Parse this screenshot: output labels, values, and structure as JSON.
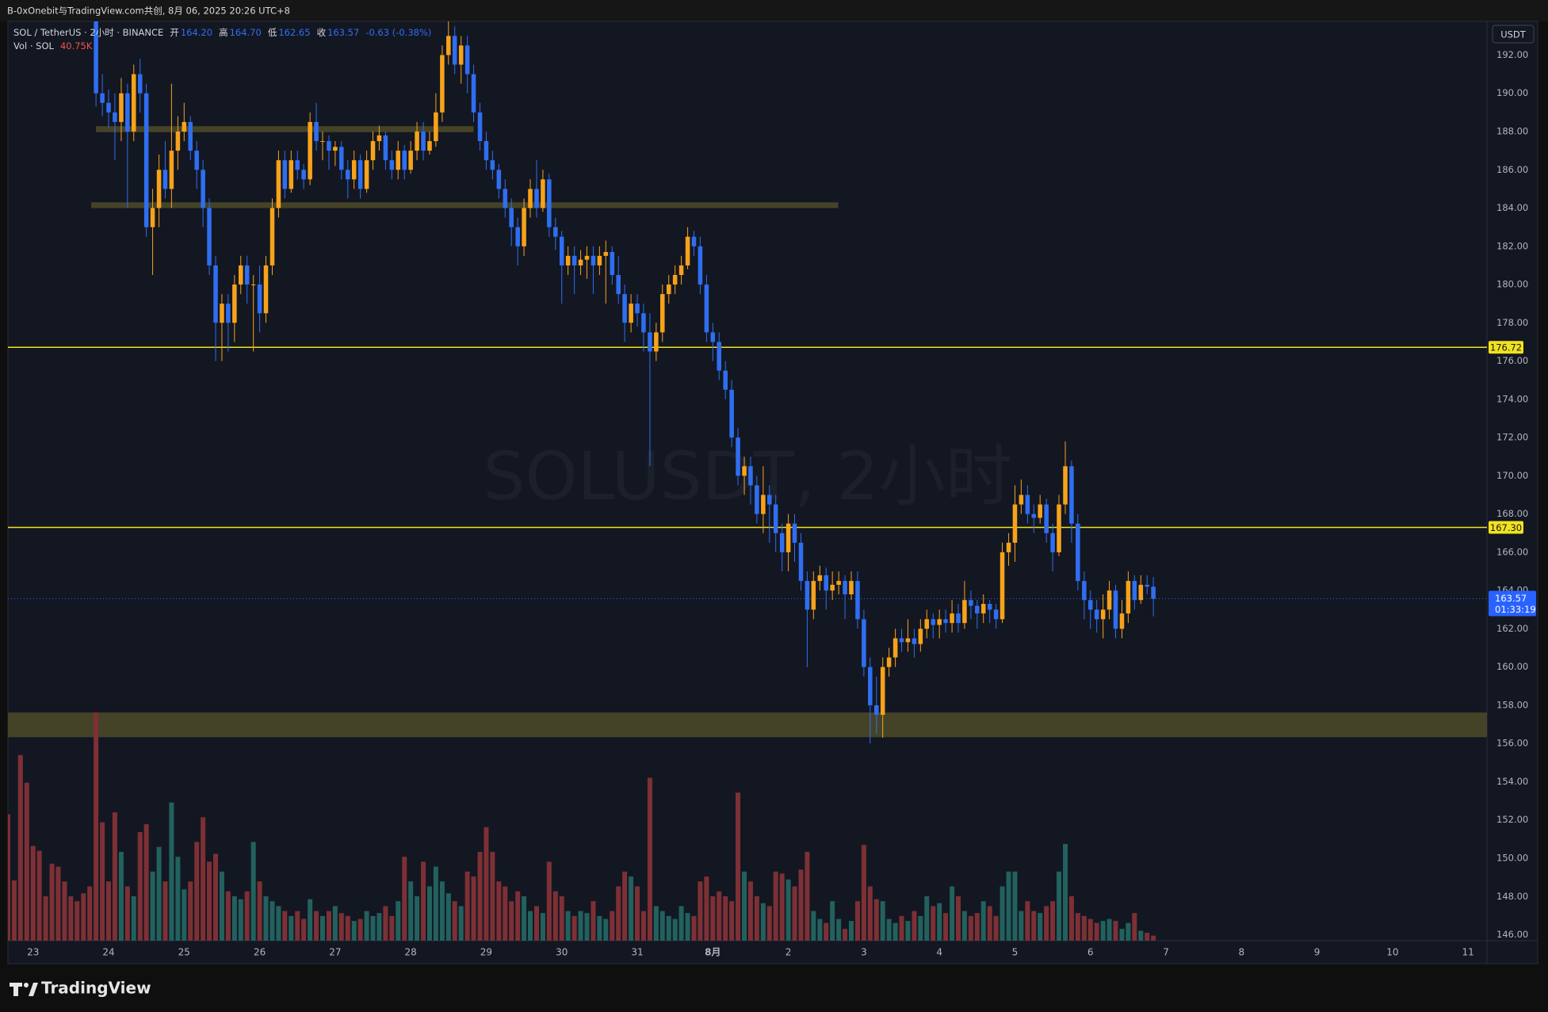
{
  "header": {
    "text": "B-0xOnebit与TradingView.com共创, 8月 06, 2025 20:26 UTC+8"
  },
  "chart_data": {
    "type": "candlestick",
    "title": "SOL / TetherUS · 2小时 · BINANCE",
    "watermark": "SOLUSDT, 2小时",
    "ohlc_legend": [
      {
        "key": "开",
        "value": "164.20"
      },
      {
        "key": "高",
        "value": "164.70"
      },
      {
        "key": "低",
        "value": "162.65"
      },
      {
        "key": "收",
        "value": "163.57"
      }
    ],
    "change": "-0.63 (-0.38%)",
    "volume_legend": {
      "name": "Vol · SOL",
      "value": "40.75K"
    },
    "currency": "USDT",
    "up_color": "#f7a21b",
    "down_color": "#2f6ef0",
    "x": [
      22.667,
      22.75,
      22.833,
      22.917,
      23,
      23.083,
      23.167,
      23.25,
      23.333,
      23.417,
      23.5,
      23.583,
      23.667,
      23.75,
      23.833,
      23.917,
      24,
      24.083,
      24.167,
      24.25,
      24.333,
      24.417,
      24.5,
      24.583,
      24.667,
      24.75,
      24.833,
      24.917,
      25,
      25.083,
      25.167,
      25.25,
      25.333,
      25.417,
      25.5,
      25.583,
      25.667,
      25.75,
      25.833,
      25.917,
      26,
      26.083,
      26.167,
      26.25,
      26.333,
      26.417,
      26.5,
      26.583,
      26.667,
      26.75,
      26.833,
      26.917,
      27,
      27.083,
      27.167,
      27.25,
      27.333,
      27.417,
      27.5,
      27.583,
      27.667,
      27.75,
      27.833,
      27.917,
      28,
      28.083,
      28.167,
      28.25,
      28.333,
      28.417,
      28.5,
      28.583,
      28.667,
      28.75,
      28.833,
      28.917,
      29,
      29.083,
      29.167,
      29.25,
      29.333,
      29.417,
      29.5,
      29.583,
      29.667,
      29.75,
      29.833,
      29.917,
      30,
      30.083,
      30.167,
      30.25,
      30.333,
      30.417,
      30.5,
      30.583,
      30.667,
      30.75,
      30.833,
      30.917,
      31,
      31.083,
      31.167,
      31.25,
      31.333,
      31.417,
      31.5,
      31.583,
      31.667,
      31.75,
      31.833,
      31.917,
      32,
      32.083,
      32.167,
      32.25,
      32.333,
      32.417,
      32.5,
      32.583,
      32.667,
      32.75,
      32.833,
      32.917,
      33,
      33.083,
      33.167,
      33.25,
      33.333,
      33.417,
      33.5,
      33.583,
      33.667,
      33.75,
      33.833,
      33.917,
      34,
      34.083,
      34.167,
      34.25,
      34.333,
      34.417,
      34.5,
      34.583,
      34.667,
      34.75,
      34.833,
      34.917,
      35,
      35.083,
      35.167,
      35.25,
      35.333,
      35.417,
      35.5,
      35.583,
      35.667,
      35.75,
      35.833,
      35.917,
      36,
      36.083,
      36.167,
      36.25,
      36.333,
      36.417,
      36.5,
      36.583,
      36.667,
      36.75,
      36.833,
      36.917,
      37,
      37.083,
      37.167,
      37.25,
      37.333,
      37.417,
      37.5,
      37.583,
      37.667,
      37.75,
      37.833
    ],
    "open": [
      null,
      null,
      null,
      null,
      null,
      null,
      null,
      null,
      null,
      null,
      null,
      null,
      null,
      null,
      195,
      190,
      189.5,
      189,
      188.5,
      190,
      188,
      191,
      190,
      183,
      184,
      186,
      185,
      187,
      188,
      188.5,
      187,
      186,
      184,
      181,
      178,
      179,
      178,
      180,
      181,
      180,
      180,
      178.5,
      181,
      184,
      186.5,
      185,
      186.5,
      186,
      185.5,
      188.5,
      187.5,
      187.5,
      187,
      187.2,
      186,
      185.5,
      186.5,
      185,
      186.5,
      187.5,
      187.8,
      186.5,
      186,
      187,
      186,
      187,
      188,
      187,
      187.5,
      189,
      192,
      193,
      191.5,
      192.5,
      191,
      189,
      187.5,
      186.5,
      186,
      185,
      184,
      183,
      182,
      184,
      185,
      184,
      185.5,
      183,
      182.5,
      181,
      181.5,
      181,
      181.3,
      181.5,
      181,
      181.5,
      181.7,
      180.5,
      179.5,
      178,
      179,
      178.5,
      177.5,
      176.5,
      177.5,
      179.5,
      180,
      180.5,
      181,
      182.5,
      182,
      180,
      177.5,
      177,
      175.5,
      174.5,
      172,
      170,
      170.5,
      169.5,
      168,
      169,
      168.5,
      167,
      166,
      167.5,
      166.5,
      164.5,
      163,
      164.5,
      164.8,
      164,
      164.3,
      164.5,
      163.8,
      164.5,
      162.5,
      160,
      158,
      157.5,
      160,
      160.5,
      161.5,
      161.3,
      161.5,
      161.2,
      162,
      162.5,
      162.2,
      162.5,
      162.3,
      162.8,
      162.3,
      163.5,
      163.2,
      162.8,
      163.3,
      163,
      162.5,
      166,
      166.5,
      168.5,
      169,
      168,
      167.8,
      168.5,
      167,
      166,
      168.5,
      170.5,
      167.5,
      164.5,
      163.5,
      163,
      162.5,
      163,
      164,
      162,
      162.8,
      164.5,
      163.5,
      164.3,
      164.2
    ],
    "high": [
      null,
      null,
      null,
      null,
      null,
      null,
      null,
      null,
      null,
      null,
      null,
      null,
      null,
      null,
      196,
      191,
      190.2,
      190,
      190.8,
      190.5,
      191.5,
      191.8,
      190.5,
      185,
      186.8,
      187.5,
      190.5,
      188.8,
      189.5,
      188.8,
      187.5,
      186.5,
      184.5,
      181.5,
      179.5,
      179.5,
      180.5,
      181.5,
      181.5,
      180.5,
      181,
      181.5,
      184.5,
      187,
      187,
      187,
      187,
      186.3,
      189,
      189.5,
      188,
      187.8,
      187.5,
      187.5,
      186.5,
      187,
      186.8,
      187,
      188,
      188.3,
      188,
      187,
      187.5,
      187.3,
      187.5,
      188.5,
      188.5,
      188,
      190,
      192.5,
      193.8,
      193.5,
      193,
      193,
      191.5,
      189.5,
      188,
      187,
      186.3,
      185.5,
      184.5,
      183.5,
      184.5,
      185.5,
      186.5,
      186,
      185.8,
      183.5,
      182.8,
      182,
      182,
      181.8,
      182,
      182,
      182,
      182.3,
      182,
      181.5,
      180,
      179.5,
      179.5,
      179,
      178.5,
      178,
      180,
      180.5,
      181,
      181.5,
      183,
      182.8,
      182.5,
      180.5,
      178,
      177.5,
      176,
      175,
      172.5,
      171,
      171,
      170,
      170.5,
      169.5,
      169,
      167.5,
      168,
      168,
      167,
      165,
      165,
      165.3,
      165.2,
      165,
      165,
      164.8,
      165,
      165,
      163,
      160.5,
      159.5,
      160.5,
      161,
      162,
      162,
      162.5,
      162,
      162.5,
      163,
      162.8,
      163,
      163,
      163.5,
      163.3,
      164.5,
      164,
      163.5,
      163.8,
      163.5,
      163.3,
      166.5,
      167,
      169.5,
      169.8,
      169.5,
      168.5,
      169,
      168.8,
      167.5,
      169,
      171.8,
      170.8,
      168,
      165,
      164,
      163.5,
      163.8,
      164.5,
      164.3,
      163.5,
      165,
      164.8,
      164.8,
      164.8,
      164.7
    ],
    "low": [
      null,
      null,
      null,
      null,
      null,
      null,
      null,
      null,
      null,
      null,
      null,
      null,
      null,
      null,
      189.3,
      188.8,
      188.2,
      186.5,
      187.5,
      184,
      187.5,
      189,
      182.5,
      180.5,
      183,
      184.5,
      184,
      186,
      187.5,
      186.5,
      185,
      183,
      180.5,
      176,
      176,
      176.5,
      177,
      179.5,
      179,
      176.5,
      177.5,
      178,
      180.5,
      183.5,
      184.5,
      184.8,
      185.5,
      185,
      185.2,
      187,
      186.5,
      186,
      186.2,
      185.5,
      184.5,
      185,
      184.5,
      184.8,
      186,
      187,
      186,
      185.5,
      185.5,
      185.5,
      185.8,
      186.5,
      186.5,
      186.8,
      187.2,
      188.5,
      191.5,
      191,
      190.5,
      190,
      188.5,
      187,
      186,
      185.5,
      184.5,
      183.5,
      182,
      181,
      181.5,
      183.5,
      183.5,
      183.8,
      182.5,
      181.8,
      179,
      180.5,
      179.5,
      180.5,
      180.3,
      179.5,
      180.5,
      179,
      180,
      179,
      177,
      177.5,
      177.8,
      176.5,
      170.5,
      176,
      177,
      179,
      179.5,
      180,
      180.8,
      181.5,
      179.5,
      177,
      176,
      175,
      174,
      171.5,
      169.5,
      169,
      168.5,
      167.5,
      167,
      166.5,
      166,
      165,
      165,
      165.5,
      164,
      160,
      162.5,
      164,
      163,
      163.5,
      163.8,
      162.5,
      163.5,
      162,
      159.5,
      156,
      156.5,
      156.3,
      159.5,
      160,
      160.8,
      160.8,
      160.5,
      160.8,
      161.5,
      161.5,
      161.5,
      161.8,
      161.8,
      161.8,
      162,
      162.5,
      162,
      162.3,
      162.3,
      162,
      162.3,
      165.3,
      165.5,
      168,
      167.5,
      167,
      167.5,
      166.5,
      165,
      165.8,
      168,
      166.5,
      164,
      162.5,
      162,
      161.8,
      161.5,
      162.5,
      161.5,
      161.5,
      162.3,
      163,
      163.3,
      163.8,
      162.65
    ],
    "close": [
      null,
      null,
      null,
      null,
      null,
      null,
      null,
      null,
      null,
      null,
      null,
      null,
      null,
      null,
      190,
      189.5,
      189,
      188.5,
      190,
      188,
      191,
      190,
      183,
      184,
      186,
      185,
      187,
      188,
      188.5,
      187,
      186,
      184,
      181,
      178,
      179,
      178,
      180,
      181,
      180,
      180,
      178.5,
      181,
      184,
      186.5,
      185,
      186.5,
      186,
      185.5,
      188.5,
      187.5,
      187.5,
      187,
      187.2,
      186,
      185.5,
      186.5,
      185,
      186.5,
      187.5,
      187.8,
      186.5,
      186,
      187,
      186,
      187,
      188,
      187,
      187.5,
      189,
      192,
      193,
      191.5,
      192.5,
      191,
      189,
      187.5,
      186.5,
      186,
      185,
      184,
      183,
      182,
      184,
      185,
      184,
      185.5,
      183,
      182.5,
      181,
      181.5,
      181,
      181.3,
      181.5,
      181,
      181.5,
      181.7,
      180.5,
      179.5,
      178,
      179,
      178.5,
      177.5,
      176.5,
      177.5,
      179.5,
      180,
      180.5,
      181,
      182.5,
      182,
      180,
      177.5,
      177,
      175.5,
      174.5,
      172,
      170,
      170.5,
      169.5,
      168,
      169,
      168.5,
      167,
      166,
      167.5,
      166.5,
      164.5,
      163,
      164.5,
      164.8,
      164,
      164.3,
      164.5,
      163.8,
      164.5,
      162.5,
      160,
      158,
      157.5,
      160,
      160.5,
      161.5,
      161.3,
      161.5,
      161.2,
      162,
      162.5,
      162.2,
      162.5,
      162.3,
      162.8,
      162.3,
      163.5,
      163.2,
      162.8,
      163.3,
      163,
      162.5,
      166,
      166.5,
      168.5,
      169,
      168,
      167.8,
      168.5,
      167,
      166,
      168.5,
      170.5,
      167.5,
      164.5,
      163.5,
      163,
      162.5,
      163,
      164,
      162,
      162.8,
      164.5,
      163.5,
      164.3,
      164.2,
      163.57
    ],
    "volume": {
      "axis": "y2",
      "up_color": "#22615e",
      "down_color": "#7d3035",
      "values": [
        1024,
        488,
        1504,
        1280,
        768,
        728,
        360,
        624,
        600,
        480,
        360,
        320,
        384,
        440,
        1848,
        960,
        480,
        1040,
        720,
        440,
        360,
        880,
        944,
        560,
        760,
        480,
        1120,
        680,
        416,
        480,
        800,
        1000,
        640,
        704,
        560,
        400,
        360,
        336,
        400,
        800,
        480,
        360,
        320,
        280,
        240,
        200,
        240,
        176,
        336,
        240,
        200,
        240,
        280,
        224,
        200,
        160,
        176,
        240,
        200,
        224,
        280,
        200,
        320,
        680,
        480,
        360,
        640,
        440,
        600,
        480,
        384,
        320,
        280,
        560,
        520,
        720,
        920,
        720,
        480,
        440,
        320,
        400,
        360,
        240,
        280,
        224,
        640,
        400,
        360,
        240,
        200,
        240,
        224,
        320,
        200,
        176,
        240,
        440,
        560,
        520,
        440,
        240,
        1320,
        280,
        240,
        200,
        176,
        280,
        224,
        200,
        480,
        520,
        360,
        400,
        360,
        320,
        1200,
        560,
        480,
        360,
        304,
        280,
        560,
        544,
        496,
        440,
        576,
        720,
        240,
        176,
        144,
        320,
        176,
        96,
        160,
        320,
        776,
        440,
        336,
        320,
        176,
        144,
        200,
        160,
        240,
        200,
        360,
        280,
        304,
        224,
        440,
        360,
        240,
        200,
        224,
        320,
        280,
        200,
        440,
        560,
        560,
        240,
        320,
        240,
        224,
        280,
        320,
        560,
        784,
        360,
        224,
        200,
        176,
        144,
        160,
        176,
        160,
        96,
        144,
        224,
        80,
        64,
        40.75
      ]
    },
    "zones": [
      {
        "x": [
          23.833,
          28.833
        ],
        "y": [
          187.97,
          188.28
        ]
      },
      {
        "x": [
          23.77,
          33.66
        ],
        "y": [
          184.0,
          184.3
        ]
      },
      {
        "x": [
          22.667,
          42.25
        ],
        "y": [
          156.33,
          157.62
        ]
      }
    ],
    "zone_color": "#4b4828",
    "price_lines": [
      {
        "value": 176.72,
        "label": "176.72"
      },
      {
        "value": 167.3,
        "label": "167.30"
      }
    ],
    "price_line_color": "#f2e21e",
    "last_price": {
      "countdown": "01:33:19",
      "color": "#2962ff"
    },
    "xlim": [
      22.667,
      42.25
    ],
    "xticks": [
      23,
      24,
      25,
      26,
      27,
      28,
      29,
      30,
      31,
      {
        "value": 32,
        "label": "8月"
      },
      {
        "value": 33,
        "label": "2"
      },
      {
        "value": 34,
        "label": "3"
      },
      {
        "value": 35,
        "label": "4"
      },
      {
        "value": 36,
        "label": "5"
      },
      {
        "value": 37,
        "label": "6"
      },
      {
        "value": 38,
        "label": "7"
      },
      {
        "value": 39,
        "label": "8"
      },
      {
        "value": 40,
        "label": "9"
      },
      {
        "value": 41,
        "label": "10"
      },
      {
        "value": 42,
        "label": "11"
      }
    ],
    "ylim": [
      145.69,
      193.76
    ],
    "yticks": [
      {
        "value": 146,
        "label": "146.00"
      },
      {
        "value": 148,
        "label": "148.00"
      },
      {
        "value": 150,
        "label": "150.00"
      },
      {
        "value": 152,
        "label": "152.00"
      },
      {
        "value": 154,
        "label": "154.00"
      },
      {
        "value": 156,
        "label": "156.00"
      },
      {
        "value": 158,
        "label": "158.00"
      },
      {
        "value": 160,
        "label": "160.00"
      },
      {
        "value": 162,
        "label": "162.00"
      },
      {
        "value": 164,
        "label": "164.00"
      },
      {
        "value": 166,
        "label": "166.00"
      },
      {
        "value": 168,
        "label": "168.00"
      },
      {
        "value": 170,
        "label": "170.00"
      },
      {
        "value": 172,
        "label": "172.00"
      },
      {
        "value": 174,
        "label": "174.00"
      },
      {
        "value": 176,
        "label": "176.00"
      },
      {
        "value": 178,
        "label": "178.00"
      },
      {
        "value": 180,
        "label": "180.00"
      },
      {
        "value": 182,
        "label": "182.00"
      },
      {
        "value": 184,
        "label": "184.00"
      },
      {
        "value": 186,
        "label": "186.00"
      },
      {
        "value": 188,
        "label": "188.00"
      },
      {
        "value": 190,
        "label": "190.00"
      },
      {
        "value": 192,
        "label": "192.00"
      }
    ],
    "y2lim": [
      0,
      7450
    ],
    "grid": false
  },
  "footer": {
    "brand": "TradingView"
  }
}
